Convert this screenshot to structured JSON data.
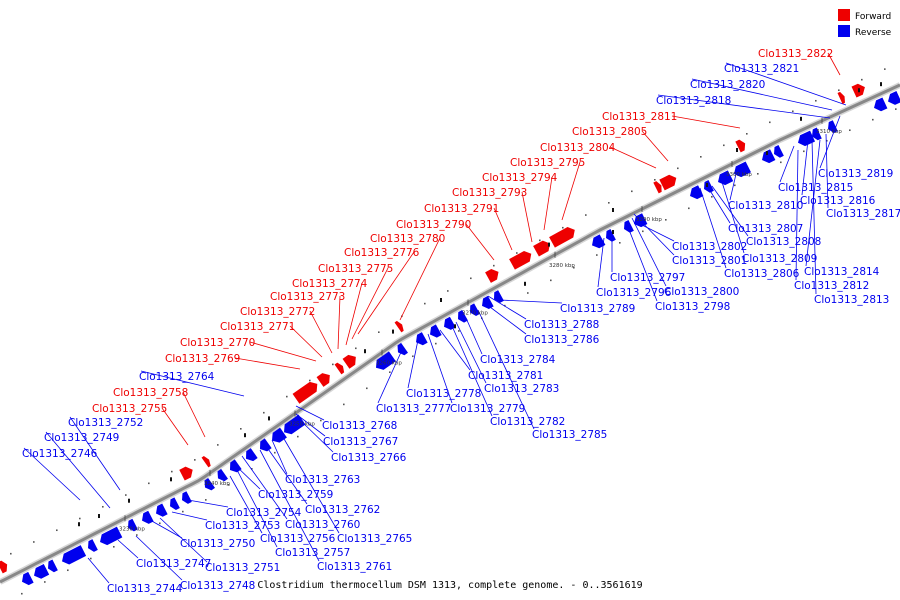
{
  "legend": {
    "forward_label": "Forward",
    "reverse_label": "Reverse",
    "forward_color": "#ee0000",
    "reverse_color": "#0000ee"
  },
  "caption": "Clostridium thermocellum DSM 1313, complete genome. - 0..3561619",
  "backbone_color": "#888888",
  "ticks": [
    "3230 kbp",
    "3240 kbp",
    "3250 kbp",
    "3260 kbp",
    "3270 kbp",
    "3280 kbp",
    "3290 kbp",
    "3300 kbp",
    "3310 kbp"
  ],
  "forward_genes": [
    "Clo1313_2755",
    "Clo1313_2758",
    "Clo1313_2769",
    "Clo1313_2770",
    "Clo1313_2771",
    "Clo1313_2772",
    "Clo1313_2773",
    "Clo1313_2774",
    "Clo1313_2775",
    "Clo1313_2776",
    "Clo1313_2780",
    "Clo1313_2790",
    "Clo1313_2791",
    "Clo1313_2793",
    "Clo1313_2794",
    "Clo1313_2795",
    "Clo1313_2804",
    "Clo1313_2805",
    "Clo1313_2811",
    "Clo1313_2822"
  ],
  "reverse_genes": [
    "Clo1313_2744",
    "Clo1313_2746",
    "Clo1313_2747",
    "Clo1313_2748",
    "Clo1313_2749",
    "Clo1313_2750",
    "Clo1313_2751",
    "Clo1313_2752",
    "Clo1313_2753",
    "Clo1313_2754",
    "Clo1313_2756",
    "Clo1313_2757",
    "Clo1313_2759",
    "Clo1313_2760",
    "Clo1313_2761",
    "Clo1313_2762",
    "Clo1313_2763",
    "Clo1313_2764",
    "Clo1313_2765",
    "Clo1313_2766",
    "Clo1313_2767",
    "Clo1313_2768",
    "Clo1313_2777",
    "Clo1313_2778",
    "Clo1313_2779",
    "Clo1313_2781",
    "Clo1313_2782",
    "Clo1313_2783",
    "Clo1313_2784",
    "Clo1313_2785",
    "Clo1313_2786",
    "Clo1313_2788",
    "Clo1313_2789",
    "Clo1313_2796",
    "Clo1313_2797",
    "Clo1313_2798",
    "Clo1313_2800",
    "Clo1313_2801",
    "Clo1313_2802",
    "Clo1313_2806",
    "Clo1313_2807",
    "Clo1313_2808",
    "Clo1313_2809",
    "Clo1313_2810",
    "Clo1313_2812",
    "Clo1313_2813",
    "Clo1313_2814",
    "Clo1313_2815",
    "Clo1313_2816",
    "Clo1313_2817",
    "Clo1313_2818",
    "Clo1313_2819",
    "Clo1313_2820",
    "Clo1313_2821"
  ]
}
